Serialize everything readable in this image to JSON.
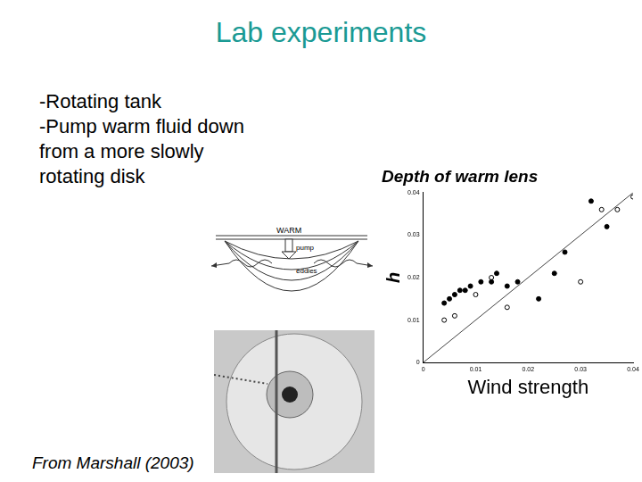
{
  "slide": {
    "title": "Lab experiments",
    "bullets": [
      "-Rotating tank",
      "-Pump warm fluid down from a more slowly rotating disk"
    ],
    "credit": "From Marshall (2003)"
  },
  "diagram": {
    "labels": [
      "WARM",
      "pump",
      "eddies"
    ]
  },
  "chart_data": {
    "type": "scatter",
    "title": "Depth of warm lens",
    "x_label": "Wind strength",
    "y_label": "h",
    "series": [
      {
        "marker": "circle",
        "color": "#000000",
        "x": [
          0.004,
          0.005,
          0.006,
          0.007,
          0.008,
          0.009,
          0.011,
          0.013,
          0.014,
          0.016,
          0.018,
          0.022,
          0.025,
          0.027,
          0.032,
          0.035
        ],
        "values": [
          0.014,
          0.015,
          0.016,
          0.017,
          0.017,
          0.018,
          0.019,
          0.019,
          0.021,
          0.018,
          0.019,
          0.015,
          0.021,
          0.026,
          0.038,
          0.032
        ]
      },
      {
        "marker": "open circle",
        "color": "#000000",
        "x": [
          0.004,
          0.006,
          0.01,
          0.013,
          0.016,
          0.03,
          0.034,
          0.037,
          0.04
        ],
        "values": [
          0.01,
          0.011,
          0.016,
          0.02,
          0.013,
          0.019,
          0.036,
          0.036,
          0.039
        ]
      },
      {
        "type": "line",
        "line_style": "solid",
        "color": "#444444",
        "x": [
          0,
          0.04
        ],
        "values": [
          0,
          0.04
        ]
      }
    ],
    "xlim": [
      0,
      0.04
    ],
    "xticks": [
      0,
      0.01,
      0.02,
      0.03,
      0.04
    ],
    "ylim": [
      0,
      0.04
    ],
    "yticks": [
      0,
      0.01,
      0.02,
      0.03,
      0.04
    ],
    "grid": false
  }
}
